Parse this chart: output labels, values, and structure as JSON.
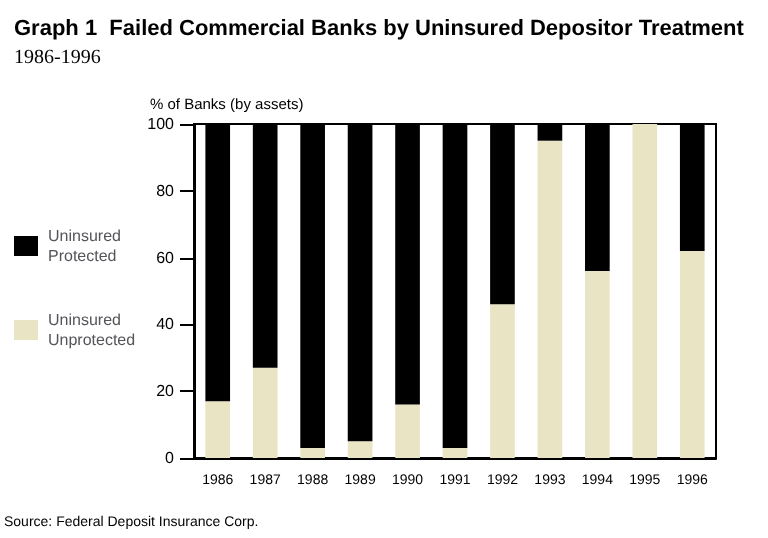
{
  "chart_data": {
    "type": "bar",
    "title": "Graph 1  Failed Commercial Banks by Uninsured Depositor Treatment",
    "subtitle": "1986-1996",
    "ylabel": "% of Banks (by assets)",
    "categories": [
      "1986",
      "1987",
      "1988",
      "1989",
      "1990",
      "1991",
      "1992",
      "1993",
      "1994",
      "1995",
      "1996"
    ],
    "stacked": true,
    "series": [
      {
        "name": "Uninsured Unprotected",
        "color": "#e9e4c4",
        "values": [
          17,
          27,
          3,
          5,
          16,
          3,
          46,
          95,
          56,
          100,
          62
        ]
      },
      {
        "name": "Uninsured Protected",
        "color": "#000000",
        "values": [
          83,
          73,
          97,
          95,
          84,
          97,
          54,
          5,
          44,
          0,
          38
        ]
      }
    ],
    "ylim": [
      0,
      100
    ],
    "yticks": [
      0,
      20,
      40,
      60,
      80,
      100
    ],
    "grid": false,
    "legend": "left",
    "annotations": [
      "Source: Federal Deposit Insurance Corp."
    ]
  }
}
